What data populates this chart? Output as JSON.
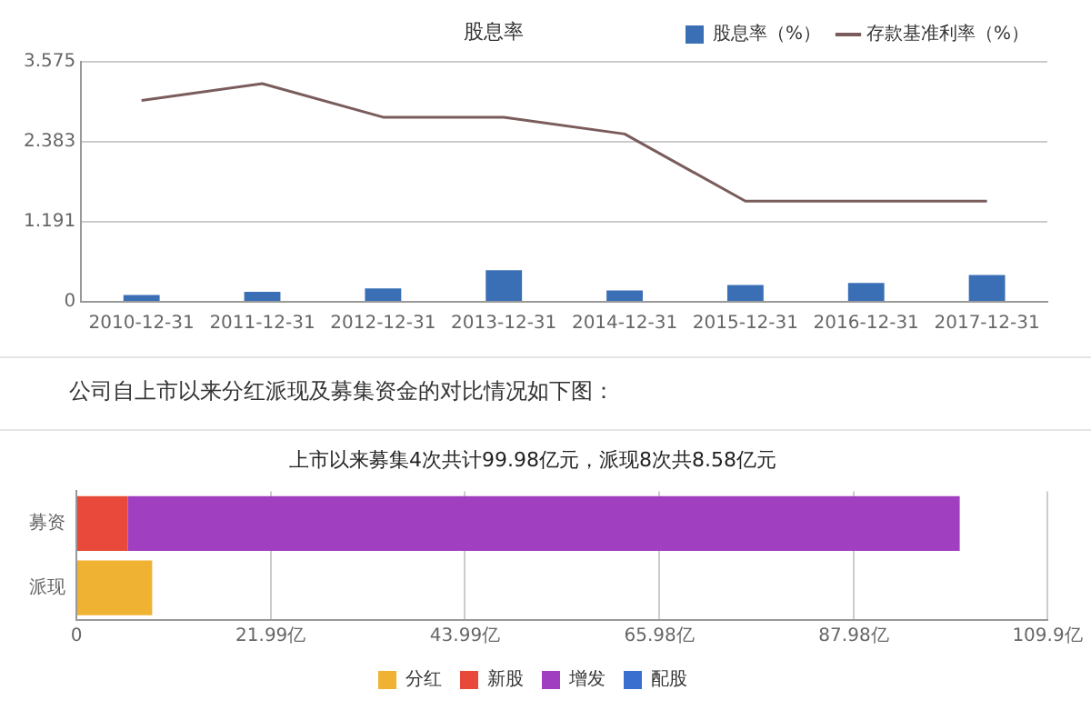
{
  "chart_data": [
    {
      "type": "bar",
      "title": "股息率",
      "categories": [
        "2010-12-31",
        "2011-12-31",
        "2012-12-31",
        "2013-12-31",
        "2014-12-31",
        "2015-12-31",
        "2016-12-31",
        "2017-12-31"
      ],
      "series": [
        {
          "name": "股息率（%）",
          "color": "#3a6fb5",
          "values": [
            0.1,
            0.15,
            0.2,
            0.47,
            0.17,
            0.25,
            0.28,
            0.4
          ]
        },
        {
          "name": "存款基准利率（%）",
          "type": "line",
          "color": "#7a5c5c",
          "values": [
            3.0,
            3.25,
            2.75,
            2.75,
            2.5,
            1.5,
            1.5,
            1.5
          ]
        }
      ],
      "ylim": [
        0,
        3.575
      ],
      "yticks": [
        0,
        1.191,
        2.383,
        3.575
      ],
      "grid": "y",
      "legend": "top right",
      "marker": "none"
    },
    {
      "type": "bar",
      "orientation": "horizontal",
      "stacked": true,
      "title": "上市以来募集4次共计99.98亿元，派现8次共8.58亿元",
      "annotations": [
        "公司自上市以来分红派现及募集资金的对比情况如下图："
      ],
      "categories": [
        "募资",
        "派现"
      ],
      "series": [
        {
          "name": "分红",
          "color": "#f0b233",
          "values": [
            null,
            8.58
          ]
        },
        {
          "name": "新股",
          "color": "#e8493a",
          "values": [
            5.8,
            null
          ]
        },
        {
          "name": "增发",
          "color": "#a040c0",
          "values": [
            94.18,
            null
          ]
        },
        {
          "name": "配股",
          "color": "#3a6fd0",
          "values": [
            null,
            null
          ]
        }
      ],
      "xlim": [
        0,
        109.9
      ],
      "xticks": [
        0,
        {
          "value": 21.99,
          "label": "21.99亿"
        },
        {
          "value": 43.99,
          "label": "43.99亿"
        },
        {
          "value": 65.98,
          "label": "65.98亿"
        },
        {
          "value": 87.98,
          "label": "87.98亿"
        },
        {
          "value": 109.9,
          "label": "109.9亿"
        }
      ],
      "grid": "x",
      "legend": "bottom"
    }
  ]
}
